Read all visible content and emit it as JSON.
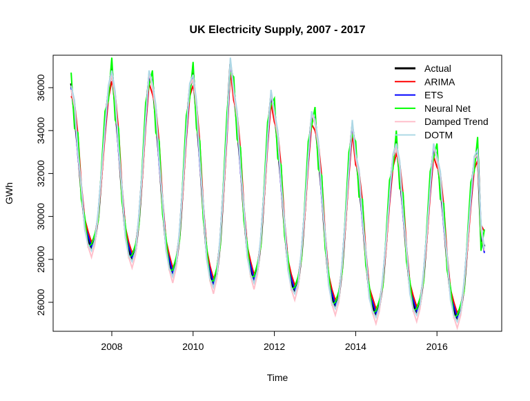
{
  "chart_data": {
    "type": "line",
    "title": "UK Electricity Supply, 2007 - 2017",
    "xlabel": "Time",
    "ylabel": "GWh",
    "xlim": [
      2006.6,
      2017.6
    ],
    "ylim": [
      24800,
      37500
    ],
    "x_ticks": [
      2008,
      2010,
      2012,
      2014,
      2016
    ],
    "y_ticks": [
      26000,
      28000,
      30000,
      32000,
      34000,
      36000
    ],
    "start": 2007.0,
    "frequency": 12,
    "legend_position": "top-right",
    "actual": {
      "name": "Actual",
      "color": "#000000",
      "values": [
        36200,
        34700,
        33100,
        31200,
        29700,
        28900,
        28500,
        28900,
        30000,
        32000,
        34300,
        35800,
        36900,
        35100,
        33300,
        31100,
        29300,
        28400,
        28000,
        28400,
        29800,
        32000,
        34700,
        36500,
        36300,
        34500,
        32700,
        30500,
        28700,
        27800,
        27300,
        27800,
        29100,
        31400,
        34100,
        35900,
        36700,
        34700,
        32700,
        30300,
        28300,
        27300,
        26800,
        27300,
        28800,
        31300,
        34200,
        37100,
        36000,
        34200,
        32400,
        30200,
        28400,
        27500,
        27000,
        27500,
        28800,
        31100,
        33800,
        35600,
        35000,
        33300,
        31600,
        29500,
        27800,
        26900,
        26500,
        26900,
        28200,
        30300,
        32900,
        34600,
        34600,
        32800,
        31100,
        28900,
        27100,
        26200,
        25800,
        26200,
        27600,
        29800,
        32400,
        34200,
        33000,
        31500,
        30000,
        28100,
        26500,
        25800,
        25400,
        25800,
        26900,
        28800,
        31100,
        32600,
        33500,
        31900,
        30300,
        28300,
        26700,
        25900,
        25500,
        25900,
        27100,
        29100,
        31500,
        33100,
        32900,
        31400,
        29800,
        27900,
        26400,
        25600,
        25200,
        25600,
        26700,
        28700,
        31000,
        32500,
        33200,
        29000,
        28600
      ]
    },
    "series": [
      {
        "name": "ARIMA",
        "color": "#ff0000",
        "monthly_deviation": [
          -600,
          600,
          700,
          300,
          200,
          400,
          300,
          200,
          100,
          -200,
          -500,
          -300
        ]
      },
      {
        "name": "ETS",
        "color": "#0000ff",
        "monthly_deviation": [
          -200,
          300,
          -300,
          200,
          -100,
          200,
          100,
          -100,
          200,
          100,
          -300,
          100
        ]
      },
      {
        "name": "Neural Net",
        "color": "#00ff00",
        "monthly_deviation": [
          500,
          -600,
          800,
          -400,
          300,
          -300,
          200,
          300,
          -200,
          400,
          600,
          -400
        ]
      },
      {
        "name": "Damped Trend",
        "color": "#ffc0cb",
        "monthly_deviation": [
          -300,
          400,
          -200,
          100,
          -200,
          -300,
          -400,
          -200,
          100,
          -100,
          -200,
          200
        ]
      },
      {
        "name": "DOTM",
        "color": "#add8e6",
        "monthly_deviation": [
          -100,
          700,
          -100,
          300,
          -300,
          -200,
          -100,
          0,
          300,
          200,
          -100,
          300
        ]
      }
    ]
  }
}
